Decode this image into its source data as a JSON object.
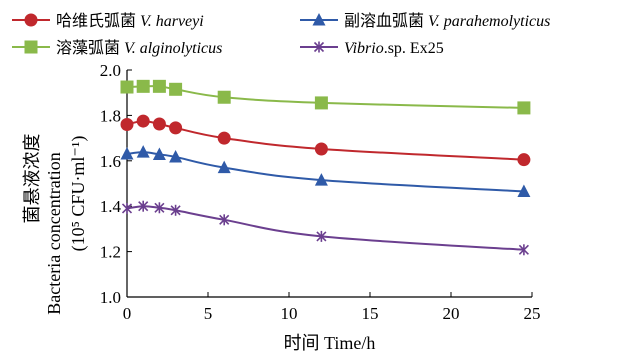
{
  "chart_data": {
    "type": "line",
    "xlabel": "时间 Time/h",
    "ylabel_cn": "菌悬液浓度",
    "ylabel_en": "Bacteria concentration",
    "ylabel_unit": "(10⁵ CFU·ml⁻¹)",
    "xlim": [
      0,
      25
    ],
    "ylim": [
      1.0,
      2.0
    ],
    "xticks": [
      "0",
      "5",
      "10",
      "15",
      "20",
      "25"
    ],
    "yticks": [
      "1.0",
      "1.2",
      "1.4",
      "1.6",
      "1.8",
      "2.0"
    ],
    "grid": false,
    "legend_position": "top",
    "series": [
      {
        "name_cn": "哈维氏弧菌",
        "name_latin": "V. harveyi",
        "color": "#c0282d",
        "marker": "circle",
        "x": [
          0,
          1,
          2,
          3,
          6,
          12,
          24.5
        ],
        "y": [
          1.76,
          1.775,
          1.762,
          1.745,
          1.7,
          1.652,
          1.605
        ]
      },
      {
        "name_cn": "副溶血弧菌",
        "name_latin": "V. parahemolyticus",
        "color": "#2f5aa8",
        "marker": "triangle",
        "x": [
          0,
          1,
          2,
          3,
          6,
          12,
          24.5
        ],
        "y": [
          1.63,
          1.638,
          1.628,
          1.617,
          1.57,
          1.515,
          1.465
        ]
      },
      {
        "name_cn": "溶藻弧菌",
        "name_latin": "V. alginolyticus",
        "color": "#8ab94a",
        "marker": "square",
        "x": [
          0,
          1,
          2,
          3,
          6,
          12,
          24.5
        ],
        "y": [
          1.925,
          1.928,
          1.928,
          1.915,
          1.88,
          1.855,
          1.833
        ]
      },
      {
        "name_cn": "",
        "name_latin": "Vibrio",
        "name_suffix": ".sp. Ex25",
        "color": "#6b3f8f",
        "marker": "star",
        "x": [
          0,
          1,
          2,
          3,
          6,
          12,
          24.5
        ],
        "y": [
          1.39,
          1.4,
          1.393,
          1.382,
          1.34,
          1.267,
          1.208
        ]
      }
    ]
  }
}
